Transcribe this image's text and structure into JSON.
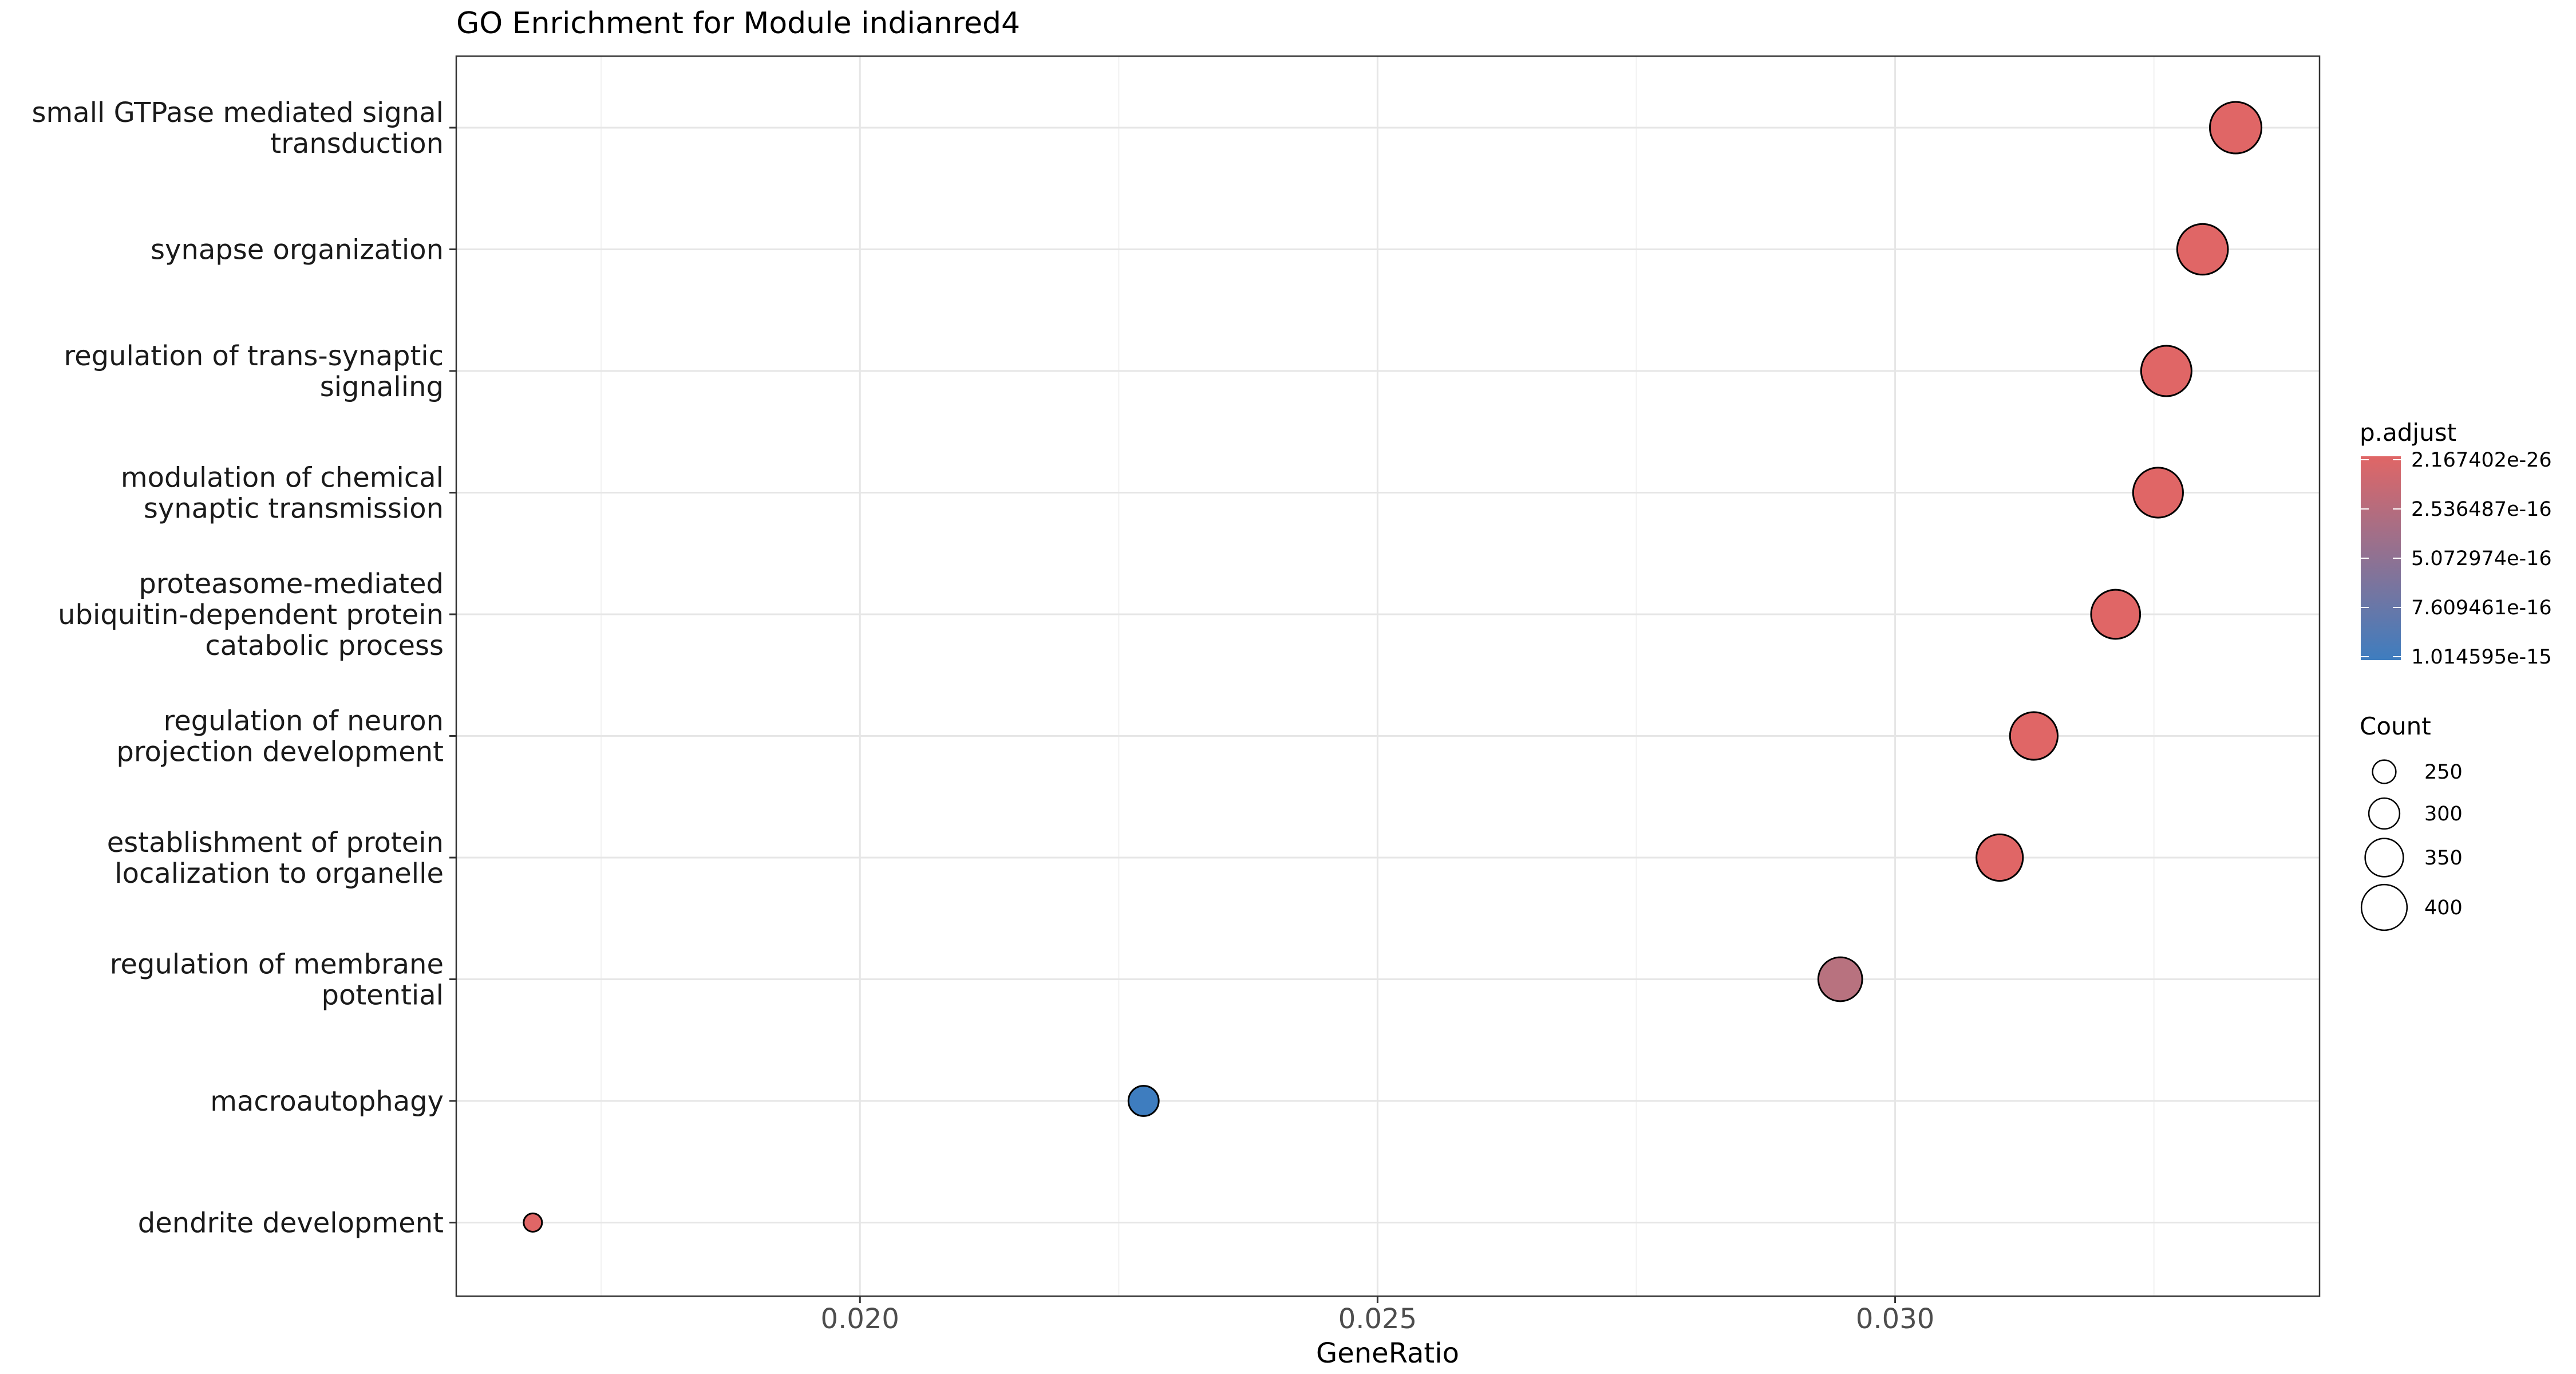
{
  "chart_data": {
    "type": "scatter",
    "title": "GO Enrichment for Module indianred4",
    "xlabel": "GeneRatio",
    "ylabel": "",
    "xlim": [
      0.0161,
      0.0341
    ],
    "x_ticks": [
      "0.020",
      "0.025",
      "0.030"
    ],
    "x_tick_values": [
      0.02,
      0.025,
      0.03
    ],
    "grid": true,
    "legend_position": "right",
    "categories": [
      [
        "small GTPase mediated signal",
        "transduction"
      ],
      [
        "synapse organization"
      ],
      [
        "regulation of trans-synaptic",
        "signaling"
      ],
      [
        "modulation of chemical",
        "synaptic transmission"
      ],
      [
        "proteasome-mediated",
        "ubiquitin-dependent protein",
        "catabolic process"
      ],
      [
        "regulation of neuron",
        "projection development"
      ],
      [
        "establishment of protein",
        "localization to organelle"
      ],
      [
        "regulation of membrane",
        "potential"
      ],
      [
        "macroautophagy"
      ],
      [
        "dendrite development"
      ]
    ],
    "points": [
      {
        "x": 0.03329,
        "count": 395,
        "p_adjust": 1e-26,
        "color": "#E06666"
      },
      {
        "x": 0.03297,
        "count": 390,
        "p_adjust": 1e-26,
        "color": "#E06666"
      },
      {
        "x": 0.03262,
        "count": 388,
        "p_adjust": 1e-26,
        "color": "#E06666"
      },
      {
        "x": 0.03254,
        "count": 385,
        "p_adjust": 1e-26,
        "color": "#E06666"
      },
      {
        "x": 0.03213,
        "count": 380,
        "p_adjust": 1e-26,
        "color": "#E06666"
      },
      {
        "x": 0.03134,
        "count": 372,
        "p_adjust": 1e-26,
        "color": "#E06666"
      },
      {
        "x": 0.03101,
        "count": 365,
        "p_adjust": 1e-26,
        "color": "#E06666"
      },
      {
        "x": 0.02947,
        "count": 350,
        "p_adjust": 2.5e-16,
        "color": "#B8727F"
      },
      {
        "x": 0.02274,
        "count": 270,
        "p_adjust": 1.014595e-15,
        "color": "#3E7DBF"
      },
      {
        "x": 0.01684,
        "count": 200,
        "p_adjust": 1e-26,
        "color": "#E06666"
      }
    ],
    "legend_color": {
      "title": "p.adjust",
      "labels": [
        "2.167402e-26",
        "2.536487e-16",
        "5.072974e-16",
        "7.609461e-16",
        "1.014595e-15"
      ],
      "color_low": "#E06666",
      "color_high": "#3E7DBF"
    },
    "legend_size": {
      "title": "Count",
      "labels": [
        "250",
        "300",
        "350",
        "400"
      ],
      "values": [
        250,
        300,
        350,
        400
      ]
    }
  }
}
